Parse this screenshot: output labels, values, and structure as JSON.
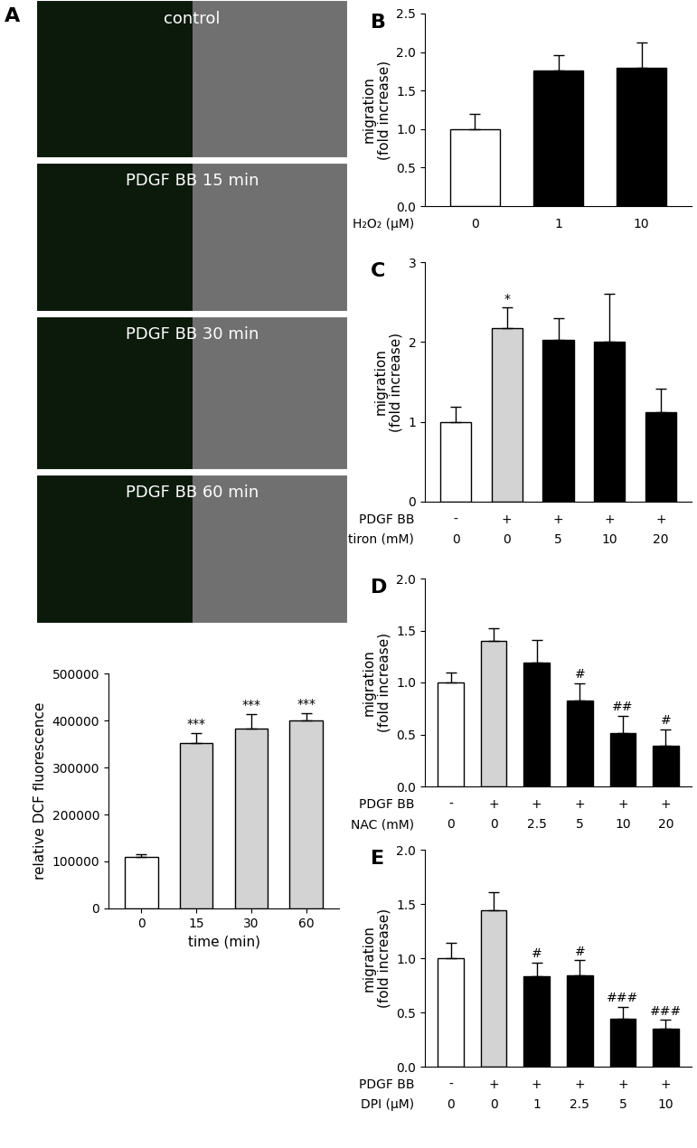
{
  "images": {
    "title": "A",
    "labels": [
      "control",
      "PDGF BB 15 min",
      "PDGF BB 30 min",
      "PDGF BB 60 min"
    ]
  },
  "chart_data": [
    {
      "type": "bar",
      "xlabel": "time (min)",
      "ylabel": "relative DCF fluorescence",
      "categories": [
        "0",
        "15",
        "30",
        "60"
      ],
      "values": [
        110000,
        352000,
        383000,
        400000
      ],
      "errors": [
        5000,
        22000,
        30000,
        15000
      ],
      "annotations": [
        null,
        "***",
        "***",
        "***"
      ],
      "colors": [
        "#ffffff",
        "#d3d3d3",
        "#d3d3d3",
        "#d3d3d3"
      ],
      "ylim": [
        0,
        500000
      ],
      "yticks": [
        0,
        100000,
        200000,
        300000,
        400000,
        500000
      ]
    },
    {
      "type": "bar",
      "title": "B",
      "ylabel": "migration\n(fold increase)",
      "x_rows": [
        {
          "label": "H₂O₂ (μM)",
          "values": [
            0,
            1,
            10
          ]
        }
      ],
      "values": [
        1.0,
        1.76,
        1.79
      ],
      "errors": [
        0.2,
        0.2,
        0.34
      ],
      "annotations": [
        null,
        null,
        null
      ],
      "colors": [
        "#ffffff",
        "#000000",
        "#000000"
      ],
      "ylim": [
        0.0,
        2.5
      ],
      "yticks": [
        0.0,
        0.5,
        1.0,
        1.5,
        2.0,
        2.5
      ]
    },
    {
      "type": "bar",
      "title": "C",
      "ylabel": "migration\n(fold increase)",
      "x_rows": [
        {
          "label": "PDGF BB",
          "values": [
            "-",
            "+",
            "+",
            "+",
            "+"
          ]
        },
        {
          "label": "tiron (mM)",
          "values": [
            0,
            0,
            5,
            10,
            20
          ]
        }
      ],
      "values": [
        1.0,
        2.17,
        2.03,
        2.0,
        1.12
      ],
      "errors": [
        0.19,
        0.26,
        0.27,
        0.6,
        0.3
      ],
      "annotations": [
        null,
        "*",
        null,
        null,
        null
      ],
      "colors": [
        "#ffffff",
        "#d3d3d3",
        "#000000",
        "#000000",
        "#000000"
      ],
      "ylim": [
        0,
        3
      ],
      "yticks": [
        0,
        1,
        2,
        3
      ]
    },
    {
      "type": "bar",
      "title": "D",
      "ylabel": "migration\n(fold increase)",
      "x_rows": [
        {
          "label": "PDGF BB",
          "values": [
            "-",
            "+",
            "+",
            "+",
            "+",
            "+"
          ]
        },
        {
          "label": "NAC (mM)",
          "values": [
            0,
            0,
            2.5,
            5,
            10,
            20
          ]
        }
      ],
      "values": [
        1.0,
        1.4,
        1.19,
        0.83,
        0.51,
        0.39
      ],
      "errors": [
        0.1,
        0.12,
        0.22,
        0.16,
        0.17,
        0.16
      ],
      "annotations": [
        null,
        null,
        null,
        "#",
        "##",
        "#"
      ],
      "colors": [
        "#ffffff",
        "#d3d3d3",
        "#000000",
        "#000000",
        "#000000",
        "#000000"
      ],
      "ylim": [
        0.0,
        2.0
      ],
      "yticks": [
        0.0,
        0.5,
        1.0,
        1.5,
        2.0
      ]
    },
    {
      "type": "bar",
      "title": "E",
      "ylabel": "migration\n(fold increase)",
      "x_rows": [
        {
          "label": "PDGF BB",
          "values": [
            "-",
            "+",
            "+",
            "+",
            "+",
            "+"
          ]
        },
        {
          "label": "DPI (μM)",
          "values": [
            0,
            0,
            1,
            2.5,
            5,
            10
          ]
        }
      ],
      "values": [
        1.0,
        1.44,
        0.83,
        0.84,
        0.44,
        0.35
      ],
      "errors": [
        0.14,
        0.17,
        0.13,
        0.14,
        0.11,
        0.08
      ],
      "annotations": [
        null,
        null,
        "#",
        "#",
        "###",
        "###"
      ],
      "colors": [
        "#ffffff",
        "#d3d3d3",
        "#000000",
        "#000000",
        "#000000",
        "#000000"
      ],
      "ylim": [
        0.0,
        2.0
      ],
      "yticks": [
        0.0,
        0.5,
        1.0,
        1.5,
        2.0
      ]
    }
  ]
}
